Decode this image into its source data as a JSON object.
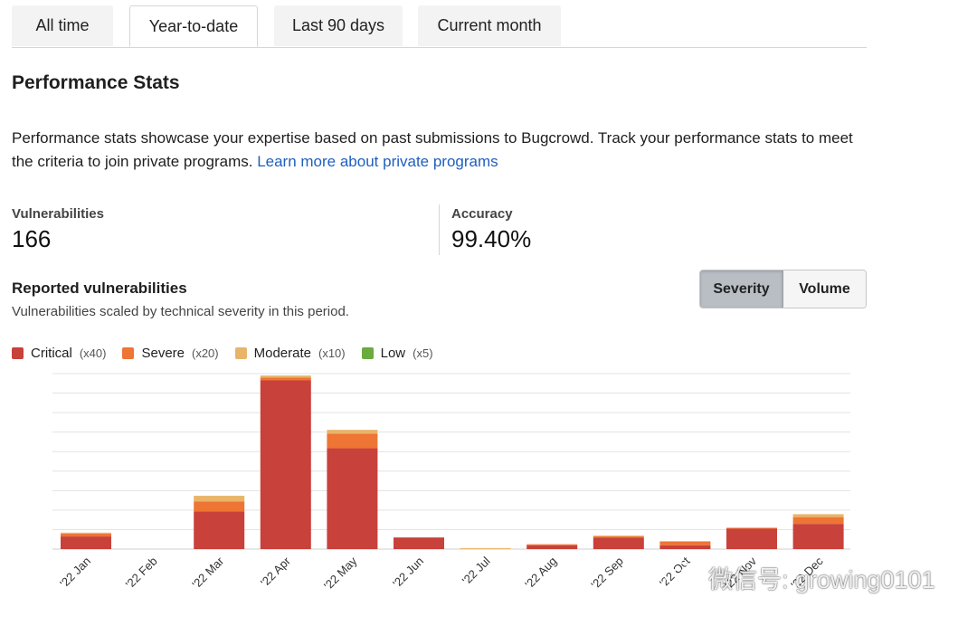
{
  "tabs": [
    {
      "label": "All time"
    },
    {
      "label": "Year-to-date"
    },
    {
      "label": "Last 90 days"
    },
    {
      "label": "Current month"
    }
  ],
  "active_tab": "Year-to-date",
  "section_title": "Performance Stats",
  "description": {
    "text": "Performance stats showcase your expertise based on past submissions to Bugcrowd. Track your performance stats to meet the criteria to join private programs.",
    "link": "Learn more about private programs"
  },
  "stats": {
    "vulnerabilities": {
      "label": "Vulnerabilities",
      "value": "166"
    },
    "accuracy": {
      "label": "Accuracy",
      "value": "99.40%"
    }
  },
  "reported": {
    "title": "Reported vulnerabilities",
    "subtitle": "Vulnerabilities scaled by technical severity in this period."
  },
  "toggle": {
    "severity": "Severity",
    "volume": "Volume",
    "active": "Severity"
  },
  "legend": [
    {
      "name": "Critical",
      "mult": "(x40)",
      "color": "#c8413b"
    },
    {
      "name": "Severe",
      "mult": "(x20)",
      "color": "#ee7533"
    },
    {
      "name": "Moderate",
      "mult": "(x10)",
      "color": "#e9b469"
    },
    {
      "name": "Low",
      "mult": "(x5)",
      "color": "#6aab3d"
    }
  ],
  "chart_data": {
    "type": "bar",
    "stacked": true,
    "categories": [
      "'22 Jan",
      "'22 Feb",
      "'22 Mar",
      "'22 Apr",
      "'22 May",
      "'22 Jun",
      "'22 Jul",
      "'22 Aug",
      "'22 Sep",
      "'22 Oct",
      "'22 Nov",
      "'22 Dec"
    ],
    "series": [
      {
        "name": "Critical",
        "color": "#c8413b",
        "values": [
          13,
          0,
          39,
          174,
          104,
          12,
          0,
          4,
          12,
          4,
          21,
          26
        ]
      },
      {
        "name": "Severe",
        "color": "#ee7533",
        "values": [
          3,
          0,
          10,
          3,
          15,
          0,
          0,
          1,
          1,
          4,
          1,
          7
        ]
      },
      {
        "name": "Moderate",
        "color": "#e9b469",
        "values": [
          1,
          0,
          6,
          2,
          4,
          0,
          1,
          0,
          1,
          0,
          0,
          3
        ]
      },
      {
        "name": "Low",
        "color": "#6aab3d",
        "values": [
          0,
          0,
          0,
          0,
          0,
          0,
          0,
          0,
          0,
          0,
          0,
          0
        ]
      }
    ],
    "ylim": [
      0,
      181
    ],
    "grid": true,
    "legend_position": "top-left"
  },
  "watermark": "微信号: growing0101"
}
